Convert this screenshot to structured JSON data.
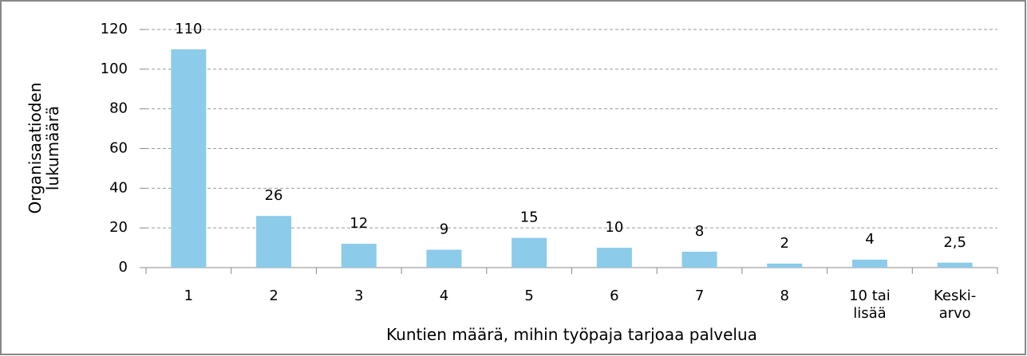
{
  "chart_data": {
    "type": "bar",
    "categories": [
      "1",
      "2",
      "3",
      "4",
      "5",
      "6",
      "7",
      "8",
      "10 tai\nlisää",
      "Keski-\narvo"
    ],
    "values": [
      110,
      26,
      12,
      9,
      15,
      10,
      8,
      2,
      4,
      2.5
    ],
    "value_labels": [
      "110",
      "26",
      "12",
      "9",
      "15",
      "10",
      "8",
      "2",
      "4",
      "2,5"
    ],
    "color": "#8ccbea",
    "ylim": [
      0,
      120
    ],
    "yticks": [
      0,
      20,
      40,
      60,
      80,
      100,
      120
    ],
    "grid": true,
    "x_label": "Kuntien määrä, mihin työpaja tarjoaa palvelua",
    "y_label": "Organisaatioden\nlukumäärä"
  }
}
